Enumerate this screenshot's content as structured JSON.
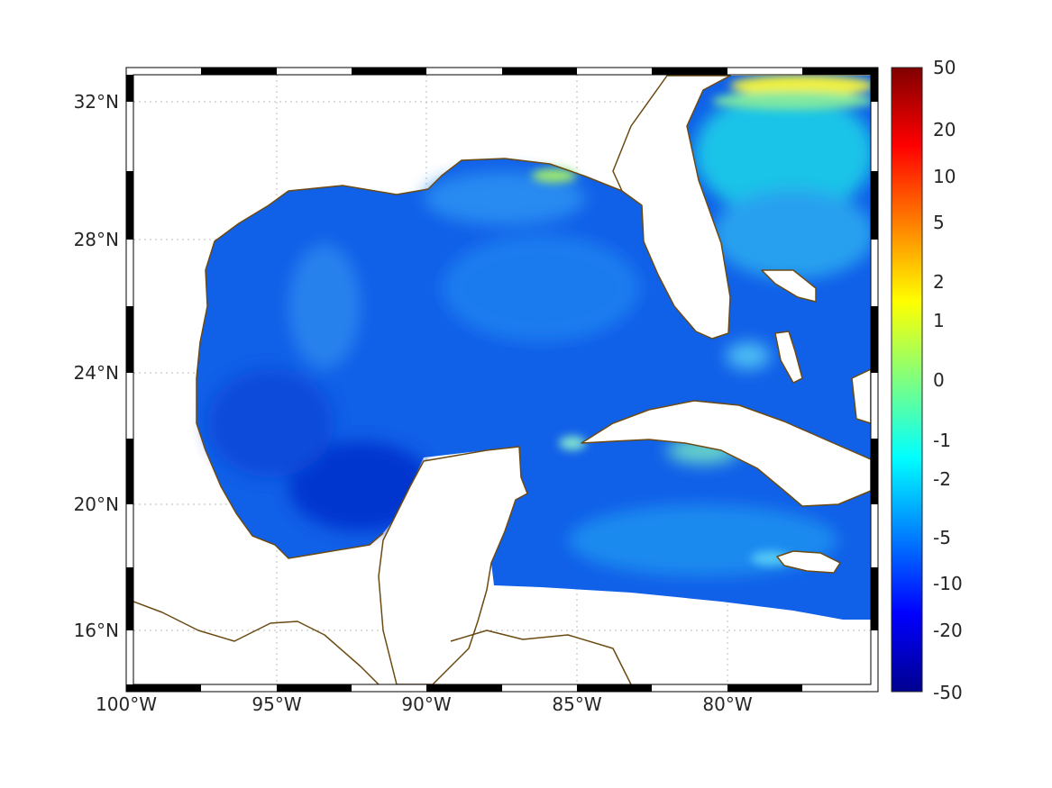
{
  "map": {
    "lon_range": [
      -100,
      -75
    ],
    "lat_range": [
      14.3,
      32.9
    ],
    "x_ticks": [
      {
        "lon": -100,
        "label": "100°W"
      },
      {
        "lon": -95,
        "label": "95°W"
      },
      {
        "lon": -90,
        "label": "90°W"
      },
      {
        "lon": -85,
        "label": "85°W"
      },
      {
        "lon": -80,
        "label": "80°W"
      }
    ],
    "y_ticks": [
      {
        "lat": 32,
        "label": "32°N"
      },
      {
        "lat": 28,
        "label": "28°N"
      },
      {
        "lat": 24,
        "label": "24°N"
      },
      {
        "lat": 20,
        "label": "20°N"
      },
      {
        "lat": 16,
        "label": "16°N"
      }
    ],
    "grid": true,
    "frame_style": "alternating black/white border",
    "coast_color": "#6b4a12",
    "region": "Gulf of Mexico and western Caribbean"
  },
  "colorbar": {
    "position": "right",
    "colormap": "jet",
    "labels": [
      "50",
      "20",
      "10",
      "5",
      "2",
      "1",
      "0",
      "-1",
      "-2",
      "-5",
      "-10",
      "-20",
      "-50"
    ]
  },
  "chart_data": {
    "type": "heatmap",
    "x_range": [
      -100,
      -75
    ],
    "y_range": [
      14.3,
      32.9
    ],
    "value_range": [
      -50,
      50
    ],
    "typical_values": {
      "gulf_interior": "-5 to -10",
      "bay_of_campeche": "-10 to -20",
      "atlantic_north_of_30N": "1 to 2"
    }
  }
}
